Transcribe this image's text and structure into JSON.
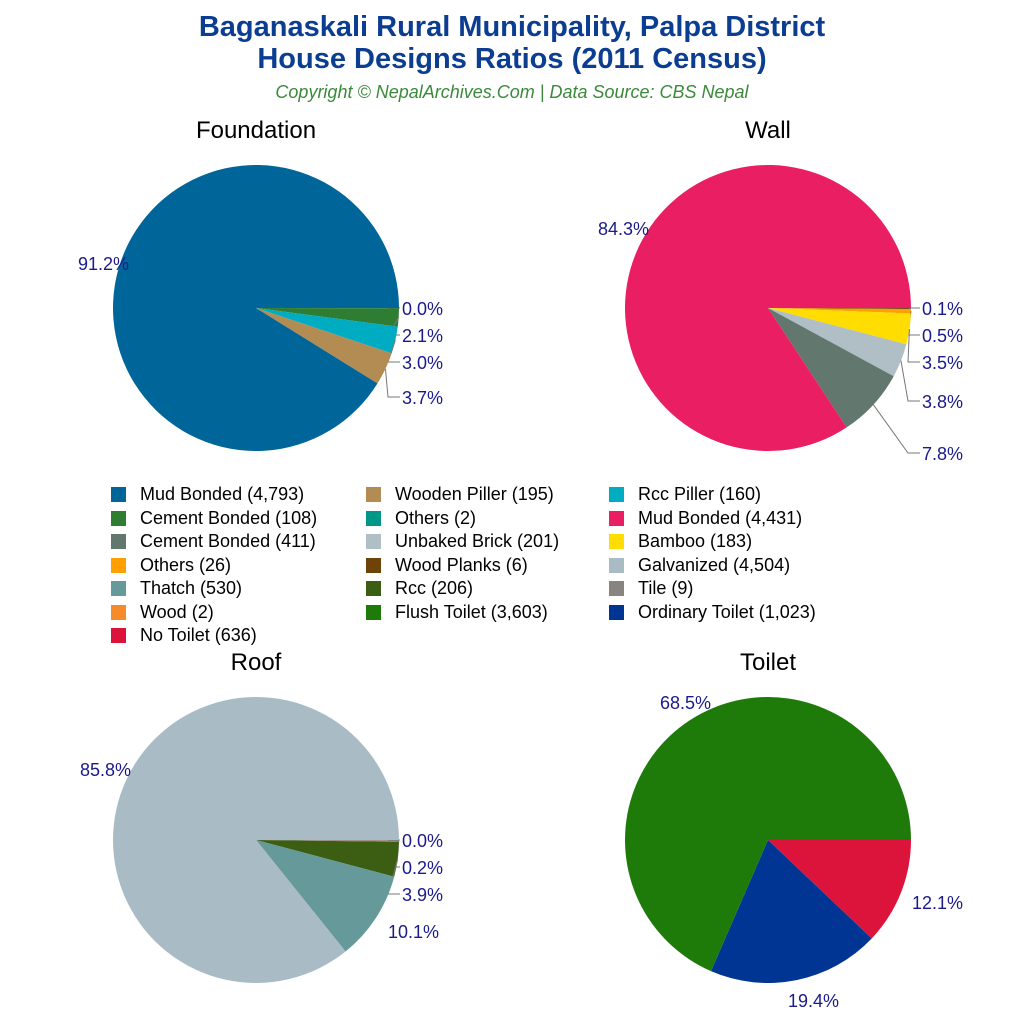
{
  "title_line1": "Baganaskali Rural Municipality, Palpa District",
  "title_line2": "House Designs Ratios (2011 Census)",
  "subtitle": "Copyright © NepalArchives.Com | Data Source: CBS Nepal",
  "chart_data": [
    {
      "type": "pie",
      "title": "Foundation",
      "slices": [
        {
          "label": "Others",
          "value": 2,
          "pct": "0.0%",
          "color": "#009688"
        },
        {
          "label": "Cement Bonded",
          "value": 108,
          "pct": "2.1%",
          "color": "#2e7d32"
        },
        {
          "label": "Rcc Piller",
          "value": 160,
          "pct": "3.0%",
          "color": "#00acc1"
        },
        {
          "label": "Wooden Piller",
          "value": 195,
          "pct": "3.7%",
          "color": "#b38c53"
        },
        {
          "label": "Mud Bonded",
          "value": 4793,
          "pct": "91.2%",
          "color": "#006699"
        }
      ]
    },
    {
      "type": "pie",
      "title": "Wall",
      "slices": [
        {
          "label": "Wood Planks",
          "value": 6,
          "pct": "0.1%",
          "color": "#6d4309"
        },
        {
          "label": "Others",
          "value": 26,
          "pct": "0.5%",
          "color": "#ffa000"
        },
        {
          "label": "Bamboo",
          "value": 183,
          "pct": "3.5%",
          "color": "#ffdd00"
        },
        {
          "label": "Unbaked Brick",
          "value": 201,
          "pct": "3.8%",
          "color": "#b0bec5"
        },
        {
          "label": "Cement Bonded",
          "value": 411,
          "pct": "7.8%",
          "color": "#62776d"
        },
        {
          "label": "Mud Bonded",
          "value": 4431,
          "pct": "84.3%",
          "color": "#e91e63"
        }
      ]
    },
    {
      "type": "pie",
      "title": "Roof",
      "slices": [
        {
          "label": "Wood",
          "value": 2,
          "pct": "0.0%",
          "color": "#f68b2c"
        },
        {
          "label": "Tile",
          "value": 9,
          "pct": "0.2%",
          "color": "#8a8480"
        },
        {
          "label": "Rcc",
          "value": 206,
          "pct": "3.9%",
          "color": "#3c5e13"
        },
        {
          "label": "Thatch",
          "value": 530,
          "pct": "10.1%",
          "color": "#66999a"
        },
        {
          "label": "Galvanized",
          "value": 4504,
          "pct": "85.8%",
          "color": "#a9bcc5"
        }
      ]
    },
    {
      "type": "pie",
      "title": "Toilet",
      "slices": [
        {
          "label": "No Toilet",
          "value": 636,
          "pct": "12.1%",
          "color": "#dc143c"
        },
        {
          "label": "Ordinary Toilet",
          "value": 1023,
          "pct": "19.4%",
          "color": "#003594"
        },
        {
          "label": "Flush Toilet",
          "value": 3603,
          "pct": "68.5%",
          "color": "#1e7b0a"
        }
      ]
    }
  ],
  "legend": [
    {
      "text": "Mud Bonded (4,793)",
      "color": "#006699"
    },
    {
      "text": "Cement Bonded (108)",
      "color": "#2e7d32"
    },
    {
      "text": "Cement Bonded (411)",
      "color": "#62776d"
    },
    {
      "text": "Others (26)",
      "color": "#ffa000"
    },
    {
      "text": "Thatch (530)",
      "color": "#66999a"
    },
    {
      "text": "Wood (2)",
      "color": "#f68b2c"
    },
    {
      "text": "No Toilet (636)",
      "color": "#dc143c"
    },
    {
      "text": "Wooden Piller (195)",
      "color": "#b38c53"
    },
    {
      "text": "Others (2)",
      "color": "#009688"
    },
    {
      "text": "Unbaked Brick (201)",
      "color": "#b0bec5"
    },
    {
      "text": "Wood Planks (6)",
      "color": "#6d4309"
    },
    {
      "text": "Rcc (206)",
      "color": "#3c5e13"
    },
    {
      "text": "Flush Toilet (3,603)",
      "color": "#1e7b0a"
    },
    {
      "text": "Rcc Piller (160)",
      "color": "#00acc1"
    },
    {
      "text": "Mud Bonded (4,431)",
      "color": "#e91e63"
    },
    {
      "text": "Bamboo (183)",
      "color": "#ffdd00"
    },
    {
      "text": "Galvanized (4,504)",
      "color": "#a9bcc5"
    },
    {
      "text": "Tile (9)",
      "color": "#8a8480"
    },
    {
      "text": "Ordinary Toilet (1,023)",
      "color": "#003594"
    }
  ]
}
